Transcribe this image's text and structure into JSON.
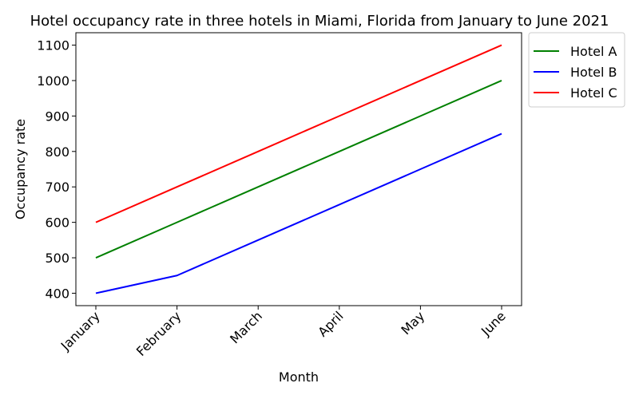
{
  "chart_data": {
    "type": "line",
    "title": "Hotel occupancy rate in three hotels in Miami, Florida from January to June 2021",
    "xlabel": "Month",
    "ylabel": "Occupancy rate",
    "categories": [
      "January",
      "February",
      "March",
      "April",
      "May",
      "June"
    ],
    "series": [
      {
        "name": "Hotel A",
        "color": "#008000",
        "values": [
          500,
          600,
          700,
          800,
          900,
          1000
        ]
      },
      {
        "name": "Hotel B",
        "color": "#0000ff",
        "values": [
          400,
          450,
          550,
          650,
          750,
          850
        ]
      },
      {
        "name": "Hotel C",
        "color": "#ff0000",
        "values": [
          600,
          700,
          800,
          900,
          1000,
          1100
        ]
      }
    ],
    "yticks": [
      400,
      500,
      600,
      700,
      800,
      900,
      1000,
      1100
    ],
    "ylim": [
      365,
      1135
    ],
    "grid": false,
    "legend": "outside-top-right"
  }
}
